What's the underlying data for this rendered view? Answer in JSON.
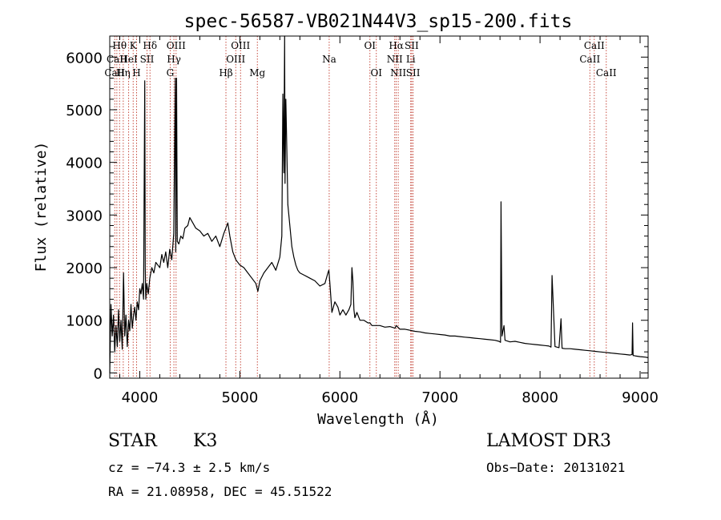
{
  "chart_data": {
    "type": "line",
    "title": "spec-56587-VB021N44V3_sp15-200.fits",
    "xlabel": "Wavelength (Å)",
    "ylabel": "Flux (relative)",
    "xlim": [
      3700,
      9080
    ],
    "ylim": [
      -100,
      6400
    ],
    "xticks": [
      4000,
      5000,
      6000,
      7000,
      8000,
      9000
    ],
    "yticks": [
      0,
      1000,
      2000,
      3000,
      4000,
      5000,
      6000
    ],
    "series": [
      {
        "name": "spectrum",
        "x": [
          3700,
          3712,
          3725,
          3738,
          3750,
          3762,
          3775,
          3788,
          3800,
          3812,
          3825,
          3838,
          3850,
          3862,
          3875,
          3888,
          3900,
          3912,
          3925,
          3938,
          3950,
          3962,
          3975,
          3988,
          4000,
          4012,
          4025,
          4038,
          4050,
          4055,
          4060,
          4070,
          4085,
          4100,
          4120,
          4140,
          4160,
          4180,
          4200,
          4220,
          4240,
          4260,
          4280,
          4300,
          4320,
          4340,
          4355,
          4360,
          4368,
          4375,
          4390,
          4410,
          4430,
          4450,
          4480,
          4500,
          4530,
          4560,
          4600,
          4640,
          4680,
          4720,
          4760,
          4800,
          4840,
          4860,
          4880,
          4900,
          4930,
          4960,
          5000,
          5040,
          5080,
          5120,
          5160,
          5180,
          5200,
          5240,
          5280,
          5320,
          5360,
          5400,
          5420,
          5430,
          5440,
          5448,
          5452,
          5460,
          5470,
          5480,
          5500,
          5520,
          5540,
          5560,
          5580,
          5600,
          5650,
          5700,
          5750,
          5800,
          5850,
          5880,
          5890,
          5900,
          5920,
          5950,
          5980,
          6000,
          6030,
          6060,
          6090,
          6110,
          6120,
          6130,
          6140,
          6150,
          6170,
          6200,
          6240,
          6280,
          6300,
          6320,
          6360,
          6400,
          6450,
          6500,
          6550,
          6563,
          6600,
          6650,
          6700,
          6750,
          6800,
          6850,
          6900,
          6950,
          7000,
          7050,
          7100,
          7150,
          7200,
          7250,
          7300,
          7350,
          7400,
          7450,
          7500,
          7550,
          7590,
          7600,
          7605,
          7610,
          7620,
          7640,
          7650,
          7700,
          7750,
          7800,
          7850,
          7900,
          7950,
          8000,
          8050,
          8090,
          8100,
          8110,
          8120,
          8150,
          8190,
          8200,
          8210,
          8220,
          8250,
          8300,
          8350,
          8400,
          8450,
          8500,
          8550,
          8600,
          8650,
          8700,
          8750,
          8800,
          8850,
          8900,
          8920,
          8925,
          8930,
          8940,
          8960,
          9000,
          9050,
          9080
        ],
        "values": [
          0,
          1300,
          700,
          1100,
          400,
          900,
          500,
          1200,
          600,
          1000,
          450,
          1900,
          700,
          1100,
          500,
          1000,
          800,
          1300,
          850,
          1100,
          1250,
          1000,
          1350,
          1200,
          1600,
          1500,
          1700,
          1400,
          5550,
          2000,
          1400,
          1700,
          1500,
          1800,
          2000,
          1900,
          2100,
          2050,
          2000,
          2250,
          2100,
          2300,
          2000,
          2350,
          2150,
          2650,
          5600,
          2300,
          5600,
          2500,
          2450,
          2600,
          2550,
          2750,
          2800,
          2950,
          2850,
          2750,
          2700,
          2600,
          2650,
          2500,
          2600,
          2400,
          2650,
          2750,
          2850,
          2600,
          2300,
          2150,
          2050,
          2000,
          1900,
          1800,
          1700,
          1550,
          1750,
          1900,
          2000,
          2100,
          1950,
          2200,
          2600,
          5300,
          3800,
          6400,
          3600,
          5200,
          4200,
          3200,
          2800,
          2400,
          2200,
          2050,
          1950,
          1900,
          1850,
          1800,
          1750,
          1650,
          1700,
          1900,
          1950,
          1700,
          1150,
          1350,
          1250,
          1100,
          1200,
          1100,
          1200,
          1300,
          2000,
          1750,
          1200,
          1050,
          1150,
          1000,
          1000,
          950,
          950,
          900,
          900,
          900,
          870,
          880,
          850,
          900,
          830,
          830,
          810,
          790,
          780,
          760,
          750,
          740,
          730,
          720,
          700,
          700,
          690,
          680,
          670,
          660,
          650,
          640,
          630,
          620,
          600,
          590,
          580,
          3250,
          700,
          900,
          620,
          590,
          600,
          580,
          560,
          550,
          540,
          530,
          520,
          510,
          500,
          490,
          1850,
          500,
          480,
          760,
          1030,
          470,
          460,
          460,
          450,
          440,
          430,
          420,
          410,
          400,
          390,
          380,
          370,
          360,
          350,
          340,
          350,
          950,
          330,
          330,
          320,
          310,
          300,
          290
        ]
      }
    ],
    "lines": [
      {
        "x": 3750,
        "label": "CaII",
        "row": 3
      },
      {
        "x": 3771,
        "label": "CaII",
        "row": 2
      },
      {
        "x": 3798,
        "label": "Hθ",
        "row": 1
      },
      {
        "x": 3835,
        "label": "Hη",
        "row": 3
      },
      {
        "x": 3889,
        "label": "HeI",
        "row": 2
      },
      {
        "x": 3934,
        "label": "K",
        "row": 1
      },
      {
        "x": 3968,
        "label": "H",
        "row": 3
      },
      {
        "x": 4072,
        "label": "SII",
        "row": 2
      },
      {
        "x": 4102,
        "label": "Hδ",
        "row": 1
      },
      {
        "x": 4304,
        "label": "G",
        "row": 3
      },
      {
        "x": 4341,
        "label": "Hγ",
        "row": 2
      },
      {
        "x": 4363,
        "label": "OIII",
        "row": 1
      },
      {
        "x": 4861,
        "label": "Hβ",
        "row": 3
      },
      {
        "x": 4959,
        "label": "OIII",
        "row": 2
      },
      {
        "x": 5007,
        "label": "OIII",
        "row": 1
      },
      {
        "x": 5175,
        "label": "Mg",
        "row": 3
      },
      {
        "x": 5893,
        "label": "Na",
        "row": 2
      },
      {
        "x": 6300,
        "label": "OI",
        "row": 1
      },
      {
        "x": 6364,
        "label": "OI",
        "row": 3
      },
      {
        "x": 6548,
        "label": "NII",
        "row": 2
      },
      {
        "x": 6563,
        "label": "Hα",
        "row": 1
      },
      {
        "x": 6583,
        "label": "NII",
        "row": 3
      },
      {
        "x": 6708,
        "label": "Li",
        "row": 2
      },
      {
        "x": 6717,
        "label": "SII",
        "row": 1
      },
      {
        "x": 6731,
        "label": "SII",
        "row": 3
      },
      {
        "x": 8498,
        "label": "CaII",
        "row": 2
      },
      {
        "x": 8542,
        "label": "CaII",
        "row": 1
      },
      {
        "x": 8662,
        "label": "CaII",
        "row": 3
      }
    ]
  },
  "info": {
    "class": "STAR",
    "subclass": "K3",
    "survey": "LAMOST DR3",
    "cz": "cz = −74.3 ± 2.5 km/s",
    "obs_date": "Obs−Date: 20131021",
    "radec": "RA =  21.08958, DEC =  45.51522"
  }
}
